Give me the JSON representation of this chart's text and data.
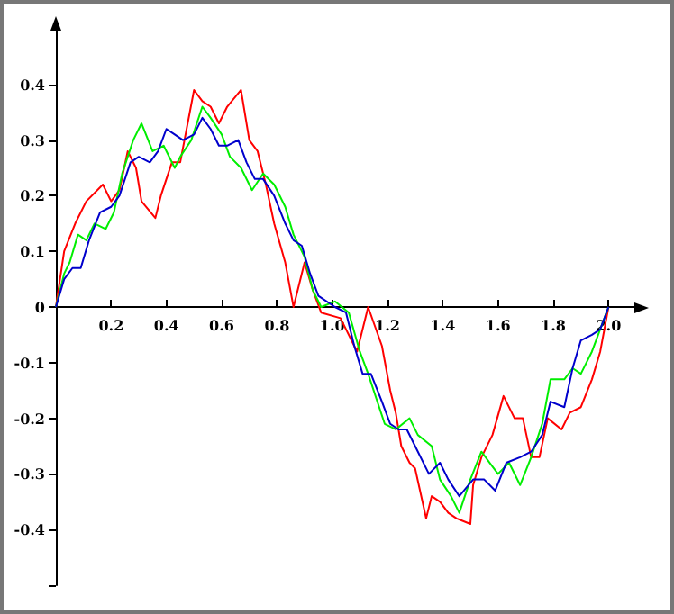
{
  "chart_data": {
    "type": "line",
    "xlim": [
      0,
      2.1
    ],
    "ylim": [
      -0.5,
      0.5
    ],
    "xticks": [
      0.2,
      0.4,
      0.6,
      0.8,
      {
        "value": 1,
        "label": "1.0"
      },
      1.2,
      1.4,
      1.6,
      1.8,
      {
        "value": 2,
        "label": "2.0"
      }
    ],
    "yticks": [
      {
        "value": -0.5,
        "label": null
      },
      -0.4,
      -0.3,
      -0.2,
      -0.1,
      0,
      0.1,
      0.2,
      0.3,
      0.4
    ],
    "grid": false,
    "marker": "none",
    "line_style": "solid",
    "series": [
      {
        "color": "#ff0000",
        "x": [
          0,
          0.03,
          0.07,
          0.11,
          0.17,
          0.2,
          0.23,
          0.26,
          0.29,
          0.31,
          0.36,
          0.38,
          0.42,
          0.45,
          0.5,
          0.53,
          0.56,
          0.59,
          0.62,
          0.67,
          0.7,
          0.73,
          0.76,
          0.79,
          0.83,
          0.86,
          0.9,
          0.93,
          0.96,
          1.03,
          1.09,
          1.13,
          1.18,
          1.21,
          1.23,
          1.25,
          1.28,
          1.3,
          1.34,
          1.36,
          1.39,
          1.42,
          1.45,
          1.5,
          1.51,
          1.54,
          1.58,
          1.62,
          1.66,
          1.69,
          1.72,
          1.75,
          1.78,
          1.83,
          1.86,
          1.9,
          1.94,
          1.97,
          2.0
        ],
        "values": [
          0,
          0.1,
          0.15,
          0.19,
          0.22,
          0.19,
          0.21,
          0.28,
          0.25,
          0.19,
          0.16,
          0.2,
          0.26,
          0.26,
          0.39,
          0.37,
          0.36,
          0.33,
          0.36,
          0.39,
          0.3,
          0.28,
          0.22,
          0.15,
          0.08,
          0,
          0.08,
          0.03,
          -0.01,
          -0.02,
          -0.08,
          0,
          -0.07,
          -0.15,
          -0.19,
          -0.25,
          -0.28,
          -0.29,
          -0.38,
          -0.34,
          -0.35,
          -0.37,
          -0.38,
          -0.39,
          -0.32,
          -0.27,
          -0.23,
          -0.16,
          -0.2,
          -0.2,
          -0.27,
          -0.27,
          -0.2,
          -0.22,
          -0.19,
          -0.18,
          -0.13,
          -0.08,
          0
        ]
      },
      {
        "color": "#00ee00",
        "x": [
          0,
          0.03,
          0.05,
          0.08,
          0.11,
          0.14,
          0.18,
          0.21,
          0.24,
          0.28,
          0.31,
          0.35,
          0.39,
          0.43,
          0.45,
          0.49,
          0.53,
          0.56,
          0.6,
          0.63,
          0.67,
          0.71,
          0.75,
          0.79,
          0.83,
          0.86,
          0.9,
          0.93,
          0.96,
          1.01,
          1.06,
          1.1,
          1.13,
          1.17,
          1.19,
          1.23,
          1.28,
          1.31,
          1.36,
          1.39,
          1.43,
          1.46,
          1.5,
          1.54,
          1.57,
          1.6,
          1.64,
          1.68,
          1.72,
          1.76,
          1.79,
          1.84,
          1.87,
          1.9,
          1.94,
          1.97,
          2.0
        ],
        "values": [
          0,
          0.06,
          0.08,
          0.13,
          0.12,
          0.15,
          0.14,
          0.17,
          0.24,
          0.3,
          0.33,
          0.28,
          0.29,
          0.25,
          0.27,
          0.3,
          0.36,
          0.34,
          0.31,
          0.27,
          0.25,
          0.21,
          0.24,
          0.22,
          0.18,
          0.13,
          0.09,
          0.03,
          0,
          0.01,
          -0.01,
          -0.08,
          -0.12,
          -0.18,
          -0.21,
          -0.22,
          -0.2,
          -0.23,
          -0.25,
          -0.31,
          -0.34,
          -0.37,
          -0.31,
          -0.26,
          -0.28,
          -0.3,
          -0.28,
          -0.32,
          -0.27,
          -0.21,
          -0.13,
          -0.13,
          -0.11,
          -0.12,
          -0.08,
          -0.04,
          0
        ]
      },
      {
        "color": "#0000cc",
        "x": [
          0,
          0.03,
          0.06,
          0.09,
          0.12,
          0.16,
          0.2,
          0.23,
          0.27,
          0.3,
          0.34,
          0.37,
          0.4,
          0.43,
          0.46,
          0.5,
          0.53,
          0.56,
          0.59,
          0.62,
          0.66,
          0.69,
          0.72,
          0.75,
          0.79,
          0.83,
          0.86,
          0.89,
          0.92,
          0.95,
          1.01,
          1.05,
          1.08,
          1.11,
          1.14,
          1.18,
          1.21,
          1.24,
          1.27,
          1.3,
          1.35,
          1.39,
          1.42,
          1.46,
          1.51,
          1.55,
          1.59,
          1.63,
          1.68,
          1.72,
          1.76,
          1.79,
          1.84,
          1.87,
          1.9,
          1.94,
          1.97,
          2.0
        ],
        "values": [
          0,
          0.05,
          0.07,
          0.07,
          0.12,
          0.17,
          0.18,
          0.2,
          0.26,
          0.27,
          0.26,
          0.28,
          0.32,
          0.31,
          0.3,
          0.31,
          0.34,
          0.32,
          0.29,
          0.29,
          0.3,
          0.26,
          0.23,
          0.23,
          0.2,
          0.15,
          0.12,
          0.11,
          0.06,
          0.02,
          0,
          -0.01,
          -0.07,
          -0.12,
          -0.12,
          -0.17,
          -0.21,
          -0.22,
          -0.22,
          -0.25,
          -0.3,
          -0.28,
          -0.31,
          -0.34,
          -0.31,
          -0.31,
          -0.33,
          -0.28,
          -0.27,
          -0.26,
          -0.23,
          -0.17,
          -0.18,
          -0.11,
          -0.06,
          -0.05,
          -0.04,
          0
        ]
      }
    ]
  }
}
